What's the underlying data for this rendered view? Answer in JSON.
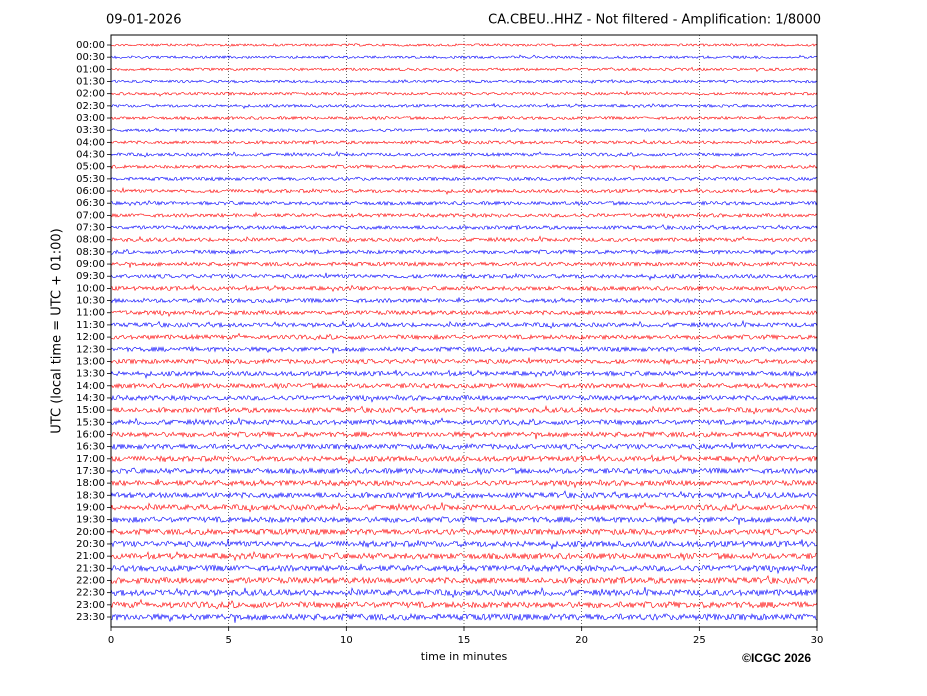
{
  "chart_data": {
    "type": "helicorder",
    "title_left": "09-01-2026",
    "title": "CA.CBEU..HHZ - Not filtered - Amplification: 1/8000",
    "ylabel": "UTC (local time = UTC + 01:00)",
    "xlabel": "time in minutes",
    "credit": "©ICGC 2026",
    "categories": [
      "00:00",
      "00:30",
      "01:00",
      "01:30",
      "02:00",
      "02:30",
      "03:00",
      "03:30",
      "04:00",
      "04:30",
      "05:00",
      "05:30",
      "06:00",
      "06:30",
      "07:00",
      "07:30",
      "08:00",
      "08:30",
      "09:00",
      "09:30",
      "10:00",
      "10:30",
      "11:00",
      "11:30",
      "12:00",
      "12:30",
      "13:00",
      "13:30",
      "14:00",
      "14:30",
      "15:00",
      "15:30",
      "16:00",
      "16:30",
      "17:00",
      "17:30",
      "18:00",
      "18:30",
      "19:00",
      "19:30",
      "20:00",
      "20:30",
      "21:00",
      "21:30",
      "22:00",
      "22:30",
      "23:00",
      "23:30"
    ],
    "colors": [
      "#ff0000",
      "#0000ff"
    ],
    "xlim": [
      0,
      30
    ],
    "xticks": [
      0,
      5,
      10,
      15,
      20,
      25,
      30
    ],
    "grid": true
  }
}
